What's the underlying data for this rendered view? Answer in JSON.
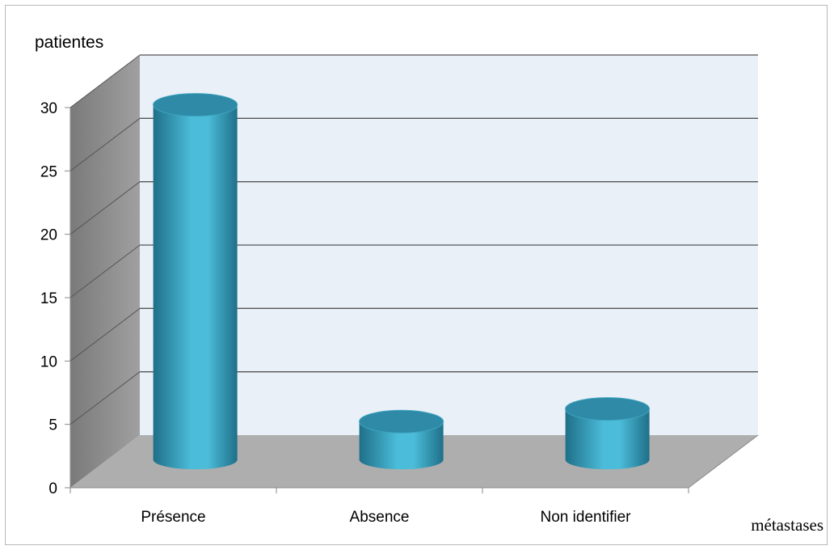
{
  "chart_data": {
    "type": "bar",
    "style": "3d-cylinder",
    "categories": [
      "Présence",
      "Absence",
      "Non identifier"
    ],
    "values": [
      28,
      3,
      4
    ],
    "title": "",
    "xlabel": "métastases",
    "ylabel": "patientes",
    "ylim": [
      0,
      30
    ],
    "yticks": [
      0,
      5,
      10,
      15,
      20,
      25,
      30
    ],
    "grid": true,
    "legend": "none",
    "colors": {
      "bar_main": "#4bbcd9",
      "bar_dark": "#1f6f88",
      "bar_top": "#2e8aa6",
      "back_wall": "#e9f0f7",
      "side_wall": "#8a8a8a",
      "floor": "#aeaeae",
      "gridline": "#555555"
    }
  }
}
